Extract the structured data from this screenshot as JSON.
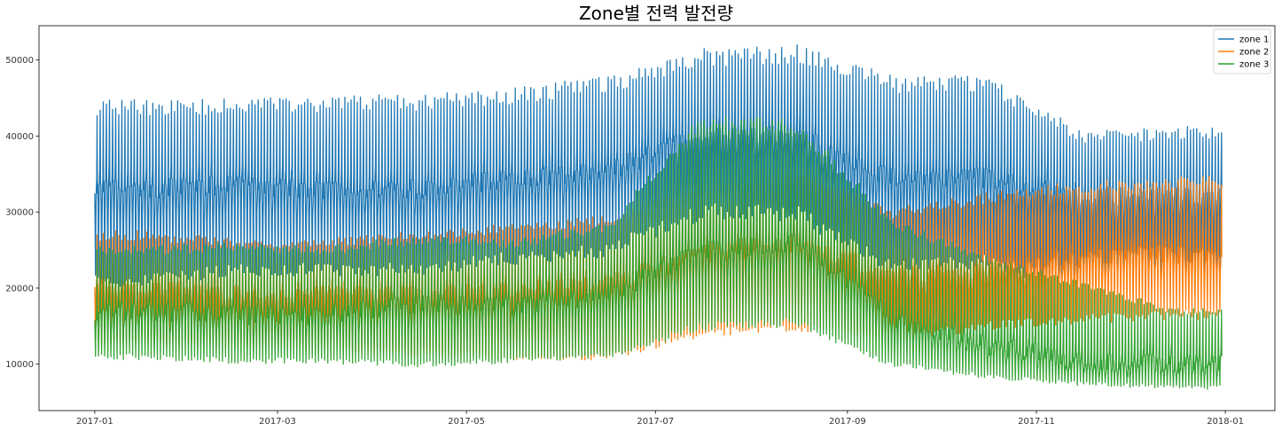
{
  "chart_data": {
    "type": "line",
    "title": "Zone별 전력 발전량",
    "xlabel": "",
    "ylabel": "",
    "x_range": [
      "2017-01-01",
      "2017-12-30"
    ],
    "xlim": [
      "2016-12-14",
      "2018-01-17"
    ],
    "ylim": [
      3900,
      54500
    ],
    "x_ticks": [
      "2017-01",
      "2017-03",
      "2017-05",
      "2017-07",
      "2017-09",
      "2017-11",
      "2018-01"
    ],
    "y_ticks": [
      10000,
      20000,
      30000,
      40000,
      50000
    ],
    "grid": false,
    "legend": {
      "position": "top-right"
    },
    "series": [
      {
        "name": "zone 1",
        "color": "#1f77b4",
        "sampling": "monthly envelope of a daily-cycle series",
        "months": [
          "2017-01",
          "2017-02",
          "2017-03",
          "2017-04",
          "2017-05",
          "2017-06",
          "2017-07",
          "2017-08",
          "2017-09",
          "2017-10",
          "2017-11",
          "2017-12"
        ],
        "daily_max": [
          44000,
          44000,
          44500,
          44500,
          45500,
          47000,
          50500,
          51000,
          47000,
          47000,
          40000,
          40500
        ],
        "daily_min": [
          21000,
          22500,
          22500,
          22500,
          24000,
          25000,
          30000,
          30000,
          23000,
          23500,
          20500,
          20500
        ],
        "night_level": [
          33000,
          33500,
          33000,
          33000,
          34500,
          35500,
          40000,
          40000,
          34500,
          34500,
          32000,
          32000
        ]
      },
      {
        "name": "zone 2",
        "color": "#ff7f0e",
        "sampling": "monthly envelope of a daily-cycle series",
        "months": [
          "2017-01",
          "2017-02",
          "2017-03",
          "2017-04",
          "2017-05",
          "2017-06",
          "2017-07",
          "2017-08",
          "2017-09",
          "2017-10",
          "2017-11",
          "2017-12"
        ],
        "daily_max": [
          27000,
          26000,
          26000,
          27000,
          28000,
          29000,
          33000,
          35000,
          30000,
          32000,
          33500,
          34000
        ],
        "daily_min": [
          13000,
          12500,
          12000,
          11500,
          11000,
          11000,
          14000,
          15000,
          13500,
          15000,
          16000,
          16500
        ],
        "night_level": [
          20000,
          19000,
          19000,
          19000,
          19500,
          20500,
          24500,
          26000,
          21500,
          22000,
          24000,
          24500
        ]
      },
      {
        "name": "zone 3",
        "color": "#2ca02c",
        "sampling": "monthly envelope of a daily-cycle series",
        "months": [
          "2017-01",
          "2017-02",
          "2017-03",
          "2017-04",
          "2017-05",
          "2017-06",
          "2017-07",
          "2017-08",
          "2017-09",
          "2017-10",
          "2017-11",
          "2017-12"
        ],
        "daily_max": [
          25000,
          25500,
          25000,
          26500,
          26000,
          28000,
          42000,
          41500,
          28500,
          24000,
          20500,
          17000
        ],
        "daily_min": [
          11000,
          10500,
          10500,
          10000,
          10500,
          11000,
          15000,
          15500,
          10000,
          8500,
          7500,
          7000
        ],
        "night_level": [
          17000,
          16500,
          16500,
          18000,
          17500,
          19000,
          25000,
          26000,
          16000,
          12500,
          10500,
          10000
        ]
      }
    ]
  }
}
